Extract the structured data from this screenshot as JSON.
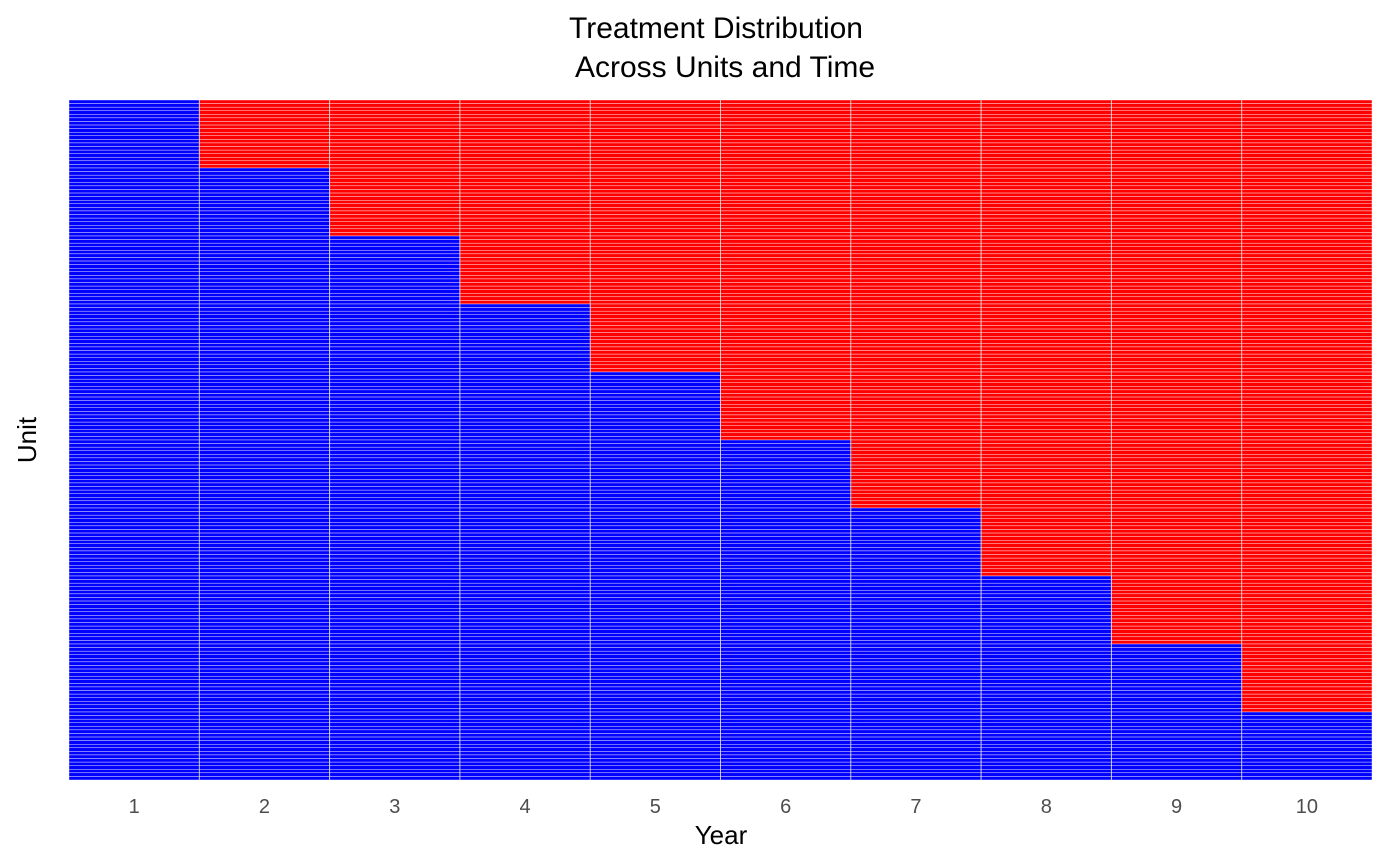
{
  "chart_data": {
    "type": "heatmap",
    "title_lines": [
      "Treatment Distribution",
      "Across Units and Time"
    ],
    "xlabel": "Year",
    "ylabel": "Unit",
    "x": [
      "1",
      "2",
      "3",
      "4",
      "5",
      "6",
      "7",
      "8",
      "9",
      "10"
    ],
    "n_units": 190,
    "units_per_cohort": 19,
    "treatment_start_year_by_cohort": [
      2,
      3,
      4,
      5,
      6,
      7,
      8,
      9,
      10
    ],
    "never_treated_units": 19,
    "colors": {
      "treated": "#ff0000",
      "untreated": "#0000ff",
      "cell_border": "#ffffff",
      "grid": "#d9d9d9"
    },
    "grid": true,
    "legend": "none"
  }
}
